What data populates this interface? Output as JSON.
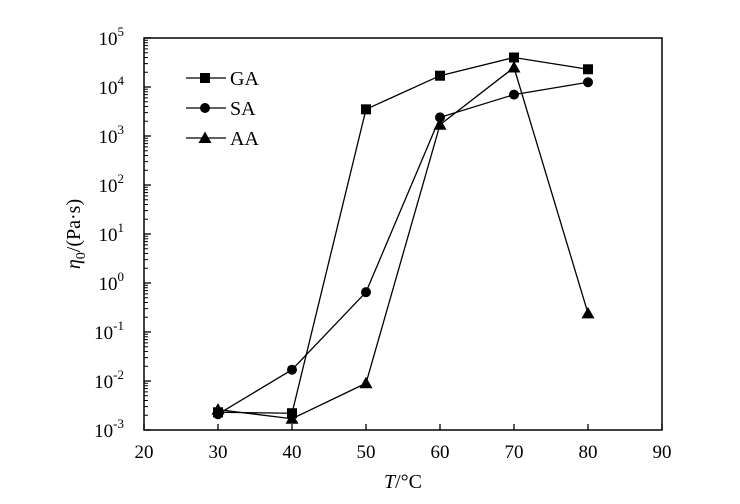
{
  "chart_data": {
    "type": "line",
    "xlabel": "T/°C",
    "ylabel": "η0/(Pa·s)",
    "y_scale": "log",
    "xlim": [
      20,
      90
    ],
    "ylim": [
      0.001,
      100000
    ],
    "grid": false,
    "legend_position": "top-left",
    "x_ticks": [
      "20",
      "30",
      "40",
      "50",
      "60",
      "70",
      "80",
      "90"
    ],
    "y_ticks": [
      {
        "base": "10",
        "exp": "5",
        "value": 100000
      },
      {
        "base": "10",
        "exp": "4",
        "value": 10000
      },
      {
        "base": "10",
        "exp": "3",
        "value": 1000
      },
      {
        "base": "10",
        "exp": "2",
        "value": 100
      },
      {
        "base": "10",
        "exp": "1",
        "value": 10
      },
      {
        "base": "10",
        "exp": "0",
        "value": 1
      },
      {
        "base": "10",
        "exp": "-1",
        "value": 0.1
      },
      {
        "base": "10",
        "exp": "-2",
        "value": 0.01
      },
      {
        "base": "10",
        "exp": "-3",
        "value": 0.001
      }
    ],
    "series": [
      {
        "name": "GA",
        "marker": "square",
        "x": [
          30,
          40,
          50,
          60,
          70,
          80
        ],
        "y": [
          0.0023,
          0.0022,
          3500,
          17000,
          40000,
          23000
        ]
      },
      {
        "name": "SA",
        "marker": "circle",
        "x": [
          30,
          40,
          50,
          60,
          70,
          80
        ],
        "y": [
          0.0021,
          0.017,
          0.65,
          2400,
          7000,
          12500
        ]
      },
      {
        "name": "AA",
        "marker": "triangle",
        "x": [
          30,
          40,
          50,
          60,
          70,
          80
        ],
        "y": [
          0.0026,
          0.0017,
          0.009,
          1700,
          25000,
          0.24
        ]
      }
    ]
  }
}
